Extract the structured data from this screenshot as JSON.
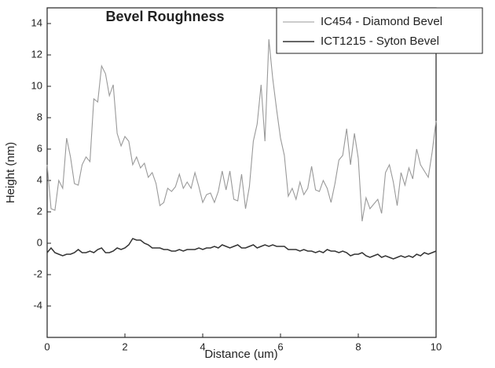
{
  "chart_data": {
    "type": "line",
    "title": "Bevel Roughness",
    "x_label": "Distance (um)",
    "y_label": "Height (nm)",
    "x": [
      0,
      0.1,
      0.2,
      0.3,
      0.4,
      0.5,
      0.6,
      0.7,
      0.8,
      0.9,
      1,
      1.1,
      1.2,
      1.3,
      1.4,
      1.5,
      1.6,
      1.7,
      1.8,
      1.9,
      2,
      2.1,
      2.2,
      2.3,
      2.4,
      2.5,
      2.6,
      2.7,
      2.8,
      2.9,
      3,
      3.1,
      3.2,
      3.3,
      3.4,
      3.5,
      3.6,
      3.7,
      3.8,
      3.9,
      4,
      4.1,
      4.2,
      4.3,
      4.4,
      4.5,
      4.6,
      4.7,
      4.8,
      4.9,
      5,
      5.1,
      5.2,
      5.3,
      5.4,
      5.5,
      5.6,
      5.7,
      5.8,
      5.9,
      6,
      6.1,
      6.2,
      6.3,
      6.4,
      6.5,
      6.6,
      6.7,
      6.8,
      6.9,
      7,
      7.1,
      7.2,
      7.3,
      7.4,
      7.5,
      7.6,
      7.7,
      7.8,
      7.9,
      8,
      8.1,
      8.2,
      8.3,
      8.4,
      8.5,
      8.6,
      8.7,
      8.8,
      8.9,
      9,
      9.1,
      9.2,
      9.3,
      9.4,
      9.5,
      9.6,
      9.7,
      9.8,
      9.9,
      10
    ],
    "series": [
      {
        "name": "IC454 - Diamond Bevel",
        "color": "#999999",
        "values": [
          5.0,
          2.2,
          2.1,
          4.0,
          3.5,
          6.7,
          5.5,
          3.8,
          3.7,
          5.0,
          5.5,
          5.2,
          9.2,
          9.0,
          11.3,
          10.8,
          9.4,
          10.1,
          7.0,
          6.2,
          6.8,
          6.5,
          5.0,
          5.5,
          4.8,
          5.1,
          4.2,
          4.5,
          3.8,
          2.4,
          2.6,
          3.5,
          3.3,
          3.6,
          4.4,
          3.5,
          3.9,
          3.5,
          4.5,
          3.6,
          2.6,
          3.1,
          3.2,
          2.6,
          3.3,
          4.6,
          3.4,
          4.6,
          2.8,
          2.7,
          4.4,
          2.2,
          3.6,
          6.5,
          7.6,
          10.1,
          6.5,
          13.0,
          10.5,
          8.5,
          6.7,
          5.6,
          3.0,
          3.5,
          2.8,
          3.9,
          3.1,
          3.5,
          4.9,
          3.4,
          3.3,
          4.0,
          3.5,
          2.6,
          3.8,
          5.3,
          5.6,
          7.3,
          5.0,
          7.0,
          5.4,
          1.4,
          2.9,
          2.2,
          2.5,
          2.8,
          1.9,
          4.5,
          5.0,
          3.9,
          2.4,
          4.5,
          3.7,
          4.8,
          4.1,
          6.0,
          5.0,
          4.6,
          4.2,
          5.8,
          7.8
        ]
      },
      {
        "name": "ICT1215 - Syton Bevel",
        "color": "#333333",
        "values": [
          -0.6,
          -0.3,
          -0.6,
          -0.7,
          -0.8,
          -0.7,
          -0.7,
          -0.6,
          -0.4,
          -0.6,
          -0.6,
          -0.5,
          -0.6,
          -0.4,
          -0.3,
          -0.6,
          -0.6,
          -0.5,
          -0.3,
          -0.4,
          -0.3,
          -0.1,
          0.3,
          0.2,
          0.2,
          0.0,
          -0.1,
          -0.3,
          -0.3,
          -0.3,
          -0.4,
          -0.4,
          -0.5,
          -0.5,
          -0.4,
          -0.5,
          -0.4,
          -0.4,
          -0.4,
          -0.3,
          -0.4,
          -0.3,
          -0.3,
          -0.2,
          -0.3,
          -0.1,
          -0.2,
          -0.3,
          -0.2,
          -0.1,
          -0.3,
          -0.3,
          -0.2,
          -0.1,
          -0.3,
          -0.2,
          -0.1,
          -0.2,
          -0.1,
          -0.2,
          -0.2,
          -0.2,
          -0.4,
          -0.4,
          -0.4,
          -0.5,
          -0.4,
          -0.5,
          -0.5,
          -0.6,
          -0.5,
          -0.6,
          -0.4,
          -0.5,
          -0.5,
          -0.6,
          -0.5,
          -0.6,
          -0.8,
          -0.7,
          -0.7,
          -0.6,
          -0.8,
          -0.9,
          -0.8,
          -0.7,
          -0.9,
          -0.8,
          -0.9,
          -1.0,
          -0.9,
          -0.8,
          -0.9,
          -0.8,
          -0.9,
          -0.7,
          -0.8,
          -0.6,
          -0.7,
          -0.6,
          -0.5
        ]
      }
    ],
    "xlim": [
      0,
      10
    ],
    "xticks": [
      0,
      2,
      4,
      6,
      8,
      10
    ],
    "ylim": [
      -6,
      15
    ],
    "yticks": [
      -4,
      -2,
      0,
      2,
      4,
      6,
      8,
      10,
      12,
      14
    ],
    "legend": "top-right"
  }
}
